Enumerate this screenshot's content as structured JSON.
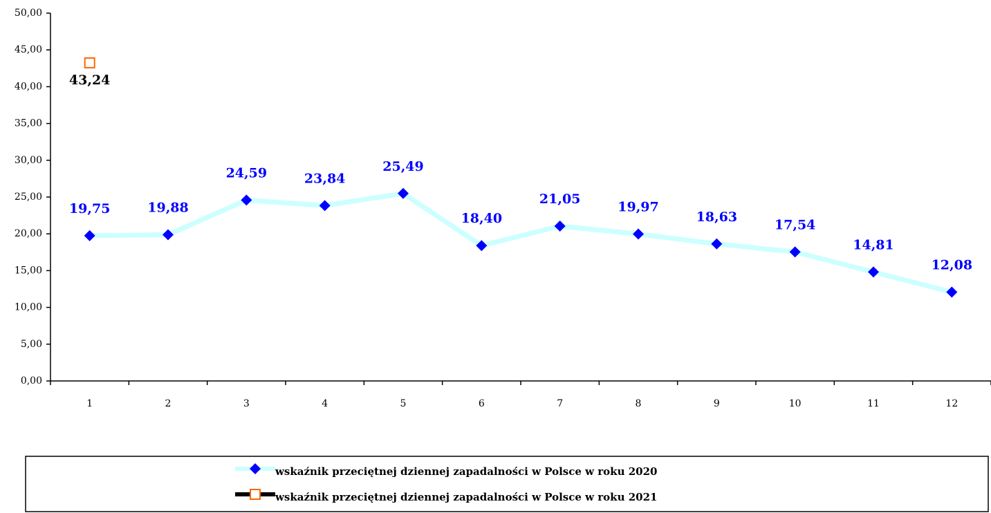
{
  "chart_data": {
    "type": "line",
    "categories": [
      "1",
      "2",
      "3",
      "4",
      "5",
      "6",
      "7",
      "8",
      "9",
      "10",
      "11",
      "12"
    ],
    "series": [
      {
        "name": "wskaźnik przeciętnej dziennej zapadalności w Polsce w roku 2020",
        "color": "#0000ff",
        "line_color": "#ccffff",
        "values": [
          19.75,
          19.88,
          24.59,
          23.84,
          25.49,
          18.4,
          21.05,
          19.97,
          18.63,
          17.54,
          14.81,
          12.08
        ],
        "value_labels": [
          "19,75",
          "19,88",
          "24,59",
          "23,84",
          "25,49",
          "18,40",
          "21,05",
          "19,97",
          "18,63",
          "17,54",
          "14,81",
          "12,08"
        ]
      },
      {
        "name": "wskaźnik przeciętnej dziennej zapadalności w Polsce w roku 2021",
        "color": "#ff6600",
        "line_color": "#000000",
        "values": [
          43.24,
          null,
          null,
          null,
          null,
          null,
          null,
          null,
          null,
          null,
          null,
          null
        ],
        "value_labels": [
          "43,24",
          null,
          null,
          null,
          null,
          null,
          null,
          null,
          null,
          null,
          null,
          null
        ]
      }
    ],
    "ylim": [
      0,
      50
    ],
    "yticks": [
      {
        "value": 0,
        "label": "0,00"
      },
      {
        "value": 5,
        "label": "5,00"
      },
      {
        "value": 10,
        "label": "10,00"
      },
      {
        "value": 15,
        "label": "15,00"
      },
      {
        "value": 20,
        "label": "20,00"
      },
      {
        "value": 25,
        "label": "25,00"
      },
      {
        "value": 30,
        "label": "30,00"
      },
      {
        "value": 35,
        "label": "35,00"
      },
      {
        "value": 40,
        "label": "40,00"
      },
      {
        "value": 45,
        "label": "45,00"
      },
      {
        "value": 50,
        "label": "50,00"
      }
    ],
    "legend": "bottom"
  }
}
